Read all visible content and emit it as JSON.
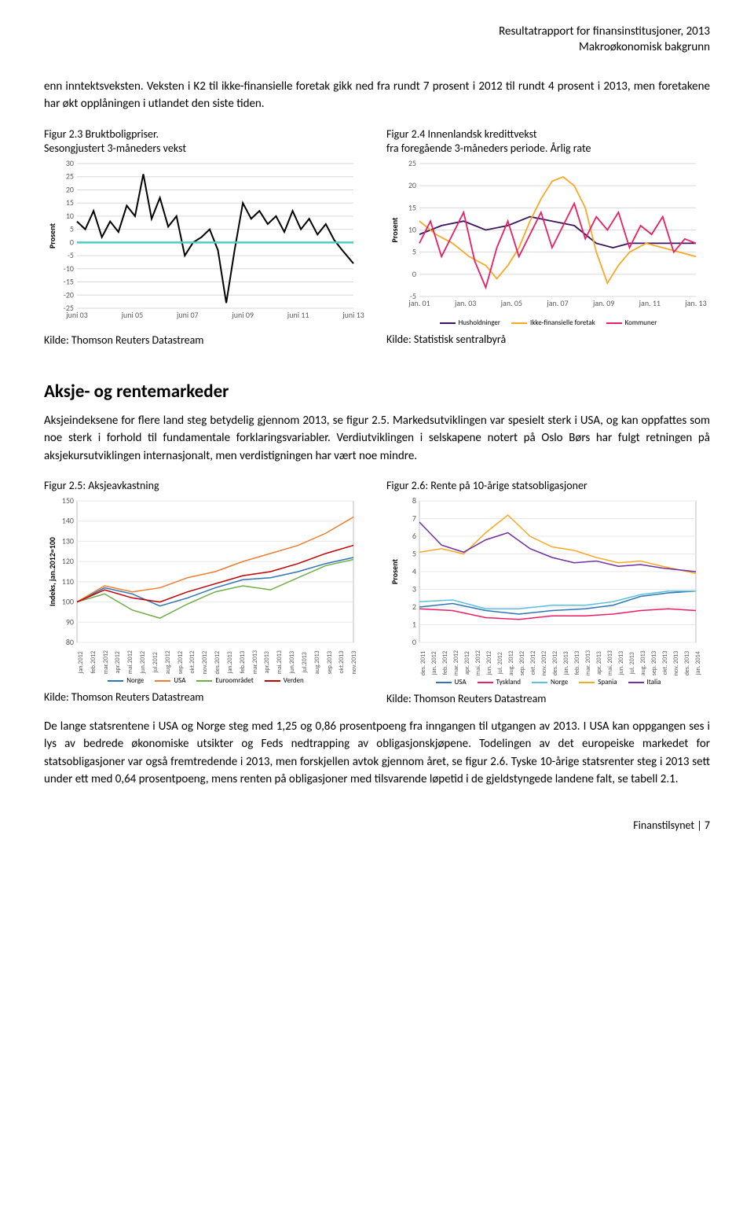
{
  "header": {
    "line1": "Resultatrapport for finansinstitusjoner, 2013",
    "line2": "Makroøkonomisk bakgrunn"
  },
  "para1": "enn inntektsveksten. Veksten i K2 til ikke-finansielle foretak gikk ned fra rundt 7 prosent i 2012 til rundt 4 prosent i 2013, men foretakene har økt opplåningen i utlandet den siste tiden.",
  "fig23": {
    "title": "Figur 2.3 Bruktboligpriser.\nSesongjustert 3-måneders vekst",
    "type": "line",
    "ylabel": "Prosent",
    "ylim": [
      -25,
      30
    ],
    "ytick_step": 5,
    "xcats": [
      "juni 03",
      "juni 05",
      "juni 07",
      "juni 09",
      "juni 11",
      "juni 13"
    ],
    "baseline_color": "#4ecdc4",
    "line_color": "#000000",
    "grid_color": "#d9d9d9",
    "series": [
      {
        "x": 0,
        "y": 8
      },
      {
        "x": 3,
        "y": 5
      },
      {
        "x": 6,
        "y": 12
      },
      {
        "x": 9,
        "y": 2
      },
      {
        "x": 12,
        "y": 8
      },
      {
        "x": 15,
        "y": 4
      },
      {
        "x": 18,
        "y": 14
      },
      {
        "x": 21,
        "y": 10
      },
      {
        "x": 24,
        "y": 26
      },
      {
        "x": 27,
        "y": 9
      },
      {
        "x": 30,
        "y": 17
      },
      {
        "x": 33,
        "y": 6
      },
      {
        "x": 36,
        "y": 10
      },
      {
        "x": 39,
        "y": -5
      },
      {
        "x": 42,
        "y": 0
      },
      {
        "x": 45,
        "y": 2
      },
      {
        "x": 48,
        "y": 5
      },
      {
        "x": 51,
        "y": -3
      },
      {
        "x": 54,
        "y": -23
      },
      {
        "x": 57,
        "y": -3
      },
      {
        "x": 60,
        "y": 15
      },
      {
        "x": 63,
        "y": 9
      },
      {
        "x": 66,
        "y": 12
      },
      {
        "x": 69,
        "y": 7
      },
      {
        "x": 72,
        "y": 10
      },
      {
        "x": 75,
        "y": 4
      },
      {
        "x": 78,
        "y": 12
      },
      {
        "x": 81,
        "y": 5
      },
      {
        "x": 84,
        "y": 9
      },
      {
        "x": 87,
        "y": 3
      },
      {
        "x": 90,
        "y": 7
      },
      {
        "x": 93,
        "y": 1
      },
      {
        "x": 96,
        "y": -3
      },
      {
        "x": 100,
        "y": -8
      }
    ],
    "caption": "Kilde: Thomson Reuters Datastream"
  },
  "fig24": {
    "title": "Figur 2.4 Innenlandsk kredittvekst\nfra foregående 3-måneders periode. Årlig rate",
    "type": "line",
    "ylabel": "Prosent",
    "ylim": [
      -5,
      25
    ],
    "ytick_step": 5,
    "xcats": [
      "jan. 01",
      "jan. 03",
      "jan. 05",
      "jan. 07",
      "jan. 09",
      "jan. 11",
      "jan. 13"
    ],
    "grid_color": "#d9d9d9",
    "series": [
      {
        "name": "Husholdninger",
        "color": "#3c1361",
        "pts": [
          {
            "x": 0,
            "y": 9
          },
          {
            "x": 8,
            "y": 11
          },
          {
            "x": 16,
            "y": 12
          },
          {
            "x": 24,
            "y": 10
          },
          {
            "x": 32,
            "y": 11
          },
          {
            "x": 40,
            "y": 13
          },
          {
            "x": 48,
            "y": 12
          },
          {
            "x": 56,
            "y": 11
          },
          {
            "x": 60,
            "y": 9
          },
          {
            "x": 64,
            "y": 7
          },
          {
            "x": 70,
            "y": 6
          },
          {
            "x": 76,
            "y": 7
          },
          {
            "x": 82,
            "y": 7
          },
          {
            "x": 88,
            "y": 7
          },
          {
            "x": 94,
            "y": 7
          },
          {
            "x": 100,
            "y": 7
          }
        ]
      },
      {
        "name": "Ikke-finansielle foretak",
        "color": "#f9a825",
        "pts": [
          {
            "x": 0,
            "y": 12
          },
          {
            "x": 6,
            "y": 9
          },
          {
            "x": 12,
            "y": 7
          },
          {
            "x": 18,
            "y": 4
          },
          {
            "x": 24,
            "y": 2
          },
          {
            "x": 28,
            "y": -1
          },
          {
            "x": 32,
            "y": 2
          },
          {
            "x": 36,
            "y": 6
          },
          {
            "x": 40,
            "y": 12
          },
          {
            "x": 44,
            "y": 17
          },
          {
            "x": 48,
            "y": 21
          },
          {
            "x": 52,
            "y": 22
          },
          {
            "x": 56,
            "y": 20
          },
          {
            "x": 60,
            "y": 15
          },
          {
            "x": 64,
            "y": 5
          },
          {
            "x": 68,
            "y": -2
          },
          {
            "x": 72,
            "y": 2
          },
          {
            "x": 76,
            "y": 5
          },
          {
            "x": 82,
            "y": 7
          },
          {
            "x": 88,
            "y": 6
          },
          {
            "x": 94,
            "y": 5
          },
          {
            "x": 100,
            "y": 4
          }
        ]
      },
      {
        "name": "Kommuner",
        "color": "#e91e63",
        "pts": [
          {
            "x": 0,
            "y": 7
          },
          {
            "x": 4,
            "y": 12
          },
          {
            "x": 8,
            "y": 4
          },
          {
            "x": 12,
            "y": 9
          },
          {
            "x": 16,
            "y": 14
          },
          {
            "x": 20,
            "y": 3
          },
          {
            "x": 24,
            "y": -3
          },
          {
            "x": 28,
            "y": 6
          },
          {
            "x": 32,
            "y": 12
          },
          {
            "x": 36,
            "y": 4
          },
          {
            "x": 40,
            "y": 9
          },
          {
            "x": 44,
            "y": 14
          },
          {
            "x": 48,
            "y": 6
          },
          {
            "x": 52,
            "y": 11
          },
          {
            "x": 56,
            "y": 16
          },
          {
            "x": 60,
            "y": 8
          },
          {
            "x": 64,
            "y": 13
          },
          {
            "x": 68,
            "y": 10
          },
          {
            "x": 72,
            "y": 14
          },
          {
            "x": 76,
            "y": 6
          },
          {
            "x": 80,
            "y": 11
          },
          {
            "x": 84,
            "y": 9
          },
          {
            "x": 88,
            "y": 13
          },
          {
            "x": 92,
            "y": 5
          },
          {
            "x": 96,
            "y": 8
          },
          {
            "x": 100,
            "y": 7
          }
        ]
      }
    ],
    "caption": "Kilde: Statistisk sentralbyrå"
  },
  "section": {
    "heading": "Aksje- og rentemarkeder",
    "para": "Aksjeindeksene for flere land steg betydelig gjennom 2013, se figur 2.5. Markedsutviklingen var spesielt sterk i USA, og kan oppfattes som noe sterk i forhold til fundamentale forklaringsvariabler. Verdiutviklingen i selskapene notert på Oslo Børs har fulgt retningen på aksjekursutviklingen internasjonalt, men verdistigningen har vært noe mindre."
  },
  "fig25": {
    "title": "Figur 2.5: Aksjeavkastning",
    "ylabel": "Indeks, jan.2012=100",
    "ylim": [
      80,
      150
    ],
    "ytick_step": 10,
    "grid_color": "#e8e8e8",
    "border_color": "#bfbfbf",
    "xcats": [
      "jan.2012",
      "feb.2012",
      "mar.2012",
      "apr.2012",
      "mai.2012",
      "jun.2012",
      "jul.2012",
      "aug.2012",
      "sep.2012",
      "okt.2012",
      "nov.2012",
      "des.2012",
      "jan.2013",
      "feb.2013",
      "mar.2013",
      "apr.2013",
      "mai.2013",
      "jun.2013",
      "jul.2013",
      "aug.2013",
      "sep.2013",
      "okt.2013",
      "nov.2013"
    ],
    "series": [
      {
        "name": "Norge",
        "color": "#2e75b6",
        "pts": [
          {
            "x": 0,
            "y": 100
          },
          {
            "x": 10,
            "y": 107
          },
          {
            "x": 20,
            "y": 104
          },
          {
            "x": 30,
            "y": 98
          },
          {
            "x": 40,
            "y": 102
          },
          {
            "x": 50,
            "y": 107
          },
          {
            "x": 60,
            "y": 111
          },
          {
            "x": 70,
            "y": 112
          },
          {
            "x": 80,
            "y": 115
          },
          {
            "x": 90,
            "y": 119
          },
          {
            "x": 100,
            "y": 122
          }
        ]
      },
      {
        "name": "USA",
        "color": "#ed7d31",
        "pts": [
          {
            "x": 0,
            "y": 100
          },
          {
            "x": 10,
            "y": 108
          },
          {
            "x": 20,
            "y": 105
          },
          {
            "x": 30,
            "y": 107
          },
          {
            "x": 40,
            "y": 112
          },
          {
            "x": 50,
            "y": 115
          },
          {
            "x": 60,
            "y": 120
          },
          {
            "x": 70,
            "y": 124
          },
          {
            "x": 80,
            "y": 128
          },
          {
            "x": 90,
            "y": 134
          },
          {
            "x": 100,
            "y": 142
          }
        ]
      },
      {
        "name": "Euroområdet",
        "color": "#70ad47",
        "pts": [
          {
            "x": 0,
            "y": 100
          },
          {
            "x": 10,
            "y": 104
          },
          {
            "x": 20,
            "y": 96
          },
          {
            "x": 30,
            "y": 92
          },
          {
            "x": 40,
            "y": 99
          },
          {
            "x": 50,
            "y": 105
          },
          {
            "x": 60,
            "y": 108
          },
          {
            "x": 70,
            "y": 106
          },
          {
            "x": 80,
            "y": 112
          },
          {
            "x": 90,
            "y": 118
          },
          {
            "x": 100,
            "y": 121
          }
        ]
      },
      {
        "name": "Verden",
        "color": "#c00000",
        "pts": [
          {
            "x": 0,
            "y": 100
          },
          {
            "x": 10,
            "y": 106
          },
          {
            "x": 20,
            "y": 102
          },
          {
            "x": 30,
            "y": 100
          },
          {
            "x": 40,
            "y": 105
          },
          {
            "x": 50,
            "y": 109
          },
          {
            "x": 60,
            "y": 113
          },
          {
            "x": 70,
            "y": 115
          },
          {
            "x": 80,
            "y": 119
          },
          {
            "x": 90,
            "y": 124
          },
          {
            "x": 100,
            "y": 128
          }
        ]
      }
    ],
    "caption": "Kilde: Thomson Reuters Datastream"
  },
  "fig26": {
    "title": "Figur 2.6: Rente på 10-årige statsobligasjoner",
    "ylabel": "Prosent",
    "ylim": [
      0,
      8
    ],
    "ytick_step": 1,
    "grid_color": "#e8e8e8",
    "border_color": "#bfbfbf",
    "xcats": [
      "des. 2011",
      "jan. 2012",
      "feb. 2012",
      "mar. 2012",
      "apr. 2012",
      "mai. 2012",
      "jun. 2012",
      "jul. 2012",
      "aug. 2012",
      "sep. 2012",
      "okt. 2012",
      "nov. 2012",
      "des. 2012",
      "jan. 2013",
      "feb. 2013",
      "mar. 2013",
      "apr. 2013",
      "mai. 2013",
      "jun. 2013",
      "jul. 2013",
      "aug. 2013",
      "sep. 2013",
      "okt. 2013",
      "nov. 2013",
      "des. 2013",
      "jan. 2014"
    ],
    "series": [
      {
        "name": "USA",
        "color": "#2e75b6",
        "pts": [
          {
            "x": 0,
            "y": 2.0
          },
          {
            "x": 12,
            "y": 2.2
          },
          {
            "x": 24,
            "y": 1.8
          },
          {
            "x": 36,
            "y": 1.6
          },
          {
            "x": 48,
            "y": 1.8
          },
          {
            "x": 60,
            "y": 1.9
          },
          {
            "x": 70,
            "y": 2.1
          },
          {
            "x": 80,
            "y": 2.6
          },
          {
            "x": 90,
            "y": 2.8
          },
          {
            "x": 100,
            "y": 2.9
          }
        ]
      },
      {
        "name": "Tyskland",
        "color": "#e91e63",
        "pts": [
          {
            "x": 0,
            "y": 1.9
          },
          {
            "x": 12,
            "y": 1.8
          },
          {
            "x": 24,
            "y": 1.4
          },
          {
            "x": 36,
            "y": 1.3
          },
          {
            "x": 48,
            "y": 1.5
          },
          {
            "x": 60,
            "y": 1.5
          },
          {
            "x": 70,
            "y": 1.6
          },
          {
            "x": 80,
            "y": 1.8
          },
          {
            "x": 90,
            "y": 1.9
          },
          {
            "x": 100,
            "y": 1.8
          }
        ]
      },
      {
        "name": "Norge",
        "color": "#5bc0de",
        "pts": [
          {
            "x": 0,
            "y": 2.3
          },
          {
            "x": 12,
            "y": 2.4
          },
          {
            "x": 24,
            "y": 1.9
          },
          {
            "x": 36,
            "y": 1.9
          },
          {
            "x": 48,
            "y": 2.1
          },
          {
            "x": 60,
            "y": 2.1
          },
          {
            "x": 70,
            "y": 2.3
          },
          {
            "x": 80,
            "y": 2.7
          },
          {
            "x": 90,
            "y": 2.9
          },
          {
            "x": 100,
            "y": 2.9
          }
        ]
      },
      {
        "name": "Spania",
        "color": "#f9a825",
        "pts": [
          {
            "x": 0,
            "y": 5.1
          },
          {
            "x": 8,
            "y": 5.3
          },
          {
            "x": 16,
            "y": 5.0
          },
          {
            "x": 24,
            "y": 6.2
          },
          {
            "x": 32,
            "y": 7.2
          },
          {
            "x": 40,
            "y": 6.0
          },
          {
            "x": 48,
            "y": 5.4
          },
          {
            "x": 56,
            "y": 5.2
          },
          {
            "x": 64,
            "y": 4.8
          },
          {
            "x": 72,
            "y": 4.5
          },
          {
            "x": 80,
            "y": 4.6
          },
          {
            "x": 88,
            "y": 4.3
          },
          {
            "x": 100,
            "y": 3.9
          }
        ]
      },
      {
        "name": "Italia",
        "color": "#7030a0",
        "pts": [
          {
            "x": 0,
            "y": 6.8
          },
          {
            "x": 8,
            "y": 5.5
          },
          {
            "x": 16,
            "y": 5.1
          },
          {
            "x": 24,
            "y": 5.8
          },
          {
            "x": 32,
            "y": 6.2
          },
          {
            "x": 40,
            "y": 5.3
          },
          {
            "x": 48,
            "y": 4.8
          },
          {
            "x": 56,
            "y": 4.5
          },
          {
            "x": 64,
            "y": 4.6
          },
          {
            "x": 72,
            "y": 4.3
          },
          {
            "x": 80,
            "y": 4.4
          },
          {
            "x": 88,
            "y": 4.2
          },
          {
            "x": 100,
            "y": 4.0
          }
        ]
      }
    ],
    "caption": "Kilde: Thomson Reuters Datastream"
  },
  "para3": "De lange statsrentene i USA og Norge steg med 1,25 og 0,86 prosentpoeng fra inngangen til utgangen av 2013. I USA kan oppgangen ses i lys av bedrede økonomiske utsikter og Feds nedtrapping av obligasjonskjøpene. Todelingen av det europeiske markedet for statsobligasjoner var også fremtredende i 2013, men forskjellen avtok gjennom året, se figur 2.6. Tyske 10-årige statsrenter steg i 2013 sett under ett med 0,64 prosentpoeng, mens renten på obligasjoner med tilsvarende løpetid i de gjeldstyngede landene falt, se tabell 2.1.",
  "footer": "Finanstilsynet | 7"
}
